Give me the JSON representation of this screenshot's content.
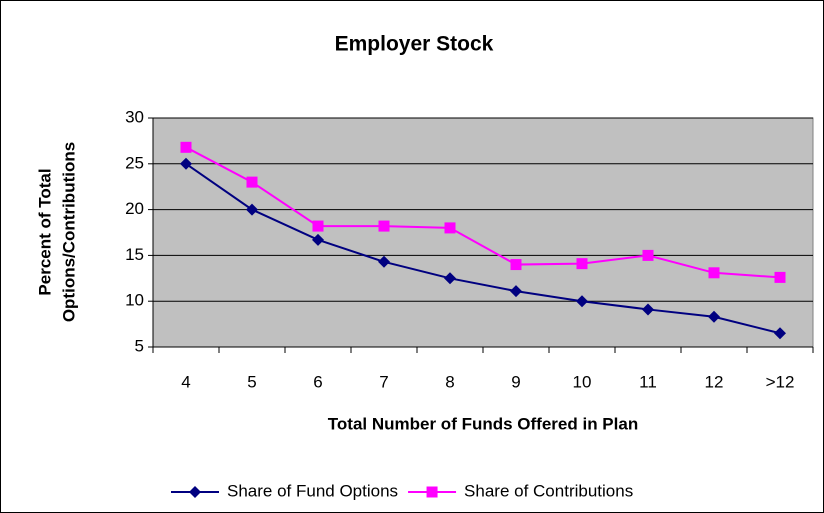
{
  "chart_data": {
    "type": "line",
    "title": "Employer Stock",
    "xlabel": "Total Number of Funds Offered in Plan",
    "ylabel": [
      "Percent of Total",
      "Options/Contributions"
    ],
    "categories": [
      "4",
      "5",
      "6",
      "7",
      "8",
      "9",
      "10",
      "11",
      "12",
      ">12"
    ],
    "series": [
      {
        "name": "Share of Fund Options",
        "color": "#000080",
        "marker": "diamond",
        "values": [
          25,
          20,
          16.7,
          14.3,
          12.5,
          11.1,
          10,
          9.1,
          8.3,
          6.5
        ]
      },
      {
        "name": "Share of Contributions",
        "color": "#ff00ff",
        "marker": "square",
        "values": [
          26.8,
          23,
          18.2,
          18.2,
          18,
          14,
          14.1,
          15,
          13.1,
          12.6
        ]
      }
    ],
    "ylim": [
      5,
      30
    ],
    "yticks": [
      5,
      10,
      15,
      20,
      25,
      30
    ],
    "grid": true,
    "plot_background": "#c0c0c0",
    "legend": "bottom"
  }
}
